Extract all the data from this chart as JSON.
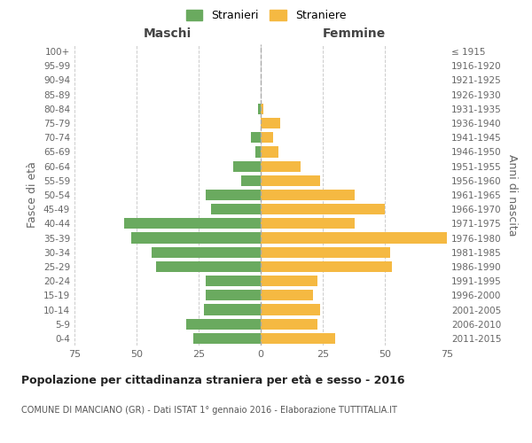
{
  "age_groups": [
    "0-4",
    "5-9",
    "10-14",
    "15-19",
    "20-24",
    "25-29",
    "30-34",
    "35-39",
    "40-44",
    "45-49",
    "50-54",
    "55-59",
    "60-64",
    "65-69",
    "70-74",
    "75-79",
    "80-84",
    "85-89",
    "90-94",
    "95-99",
    "100+"
  ],
  "birth_years": [
    "2011-2015",
    "2006-2010",
    "2001-2005",
    "1996-2000",
    "1991-1995",
    "1986-1990",
    "1981-1985",
    "1976-1980",
    "1971-1975",
    "1966-1970",
    "1961-1965",
    "1956-1960",
    "1951-1955",
    "1946-1950",
    "1941-1945",
    "1936-1940",
    "1931-1935",
    "1926-1930",
    "1921-1925",
    "1916-1920",
    "≤ 1915"
  ],
  "maschi": [
    27,
    30,
    23,
    22,
    22,
    42,
    44,
    52,
    55,
    20,
    22,
    8,
    11,
    2,
    4,
    0,
    1,
    0,
    0,
    0,
    0
  ],
  "femmine": [
    30,
    23,
    24,
    21,
    23,
    53,
    52,
    75,
    38,
    50,
    38,
    24,
    16,
    7,
    5,
    8,
    1,
    0,
    0,
    0,
    0
  ],
  "maschi_color": "#6aaa5f",
  "femmine_color": "#f5b942",
  "background_color": "#ffffff",
  "grid_color": "#cccccc",
  "title": "Popolazione per cittadinanza straniera per età e sesso - 2016",
  "subtitle": "COMUNE DI MANCIANO (GR) - Dati ISTAT 1° gennaio 2016 - Elaborazione TUTTITALIA.IT",
  "ylabel_left": "Fasce di età",
  "ylabel_right": "Anni di nascita",
  "xlabel_left": "Maschi",
  "xlabel_right": "Femmine",
  "legend_maschi": "Stranieri",
  "legend_femmine": "Straniere",
  "xlim": 75
}
